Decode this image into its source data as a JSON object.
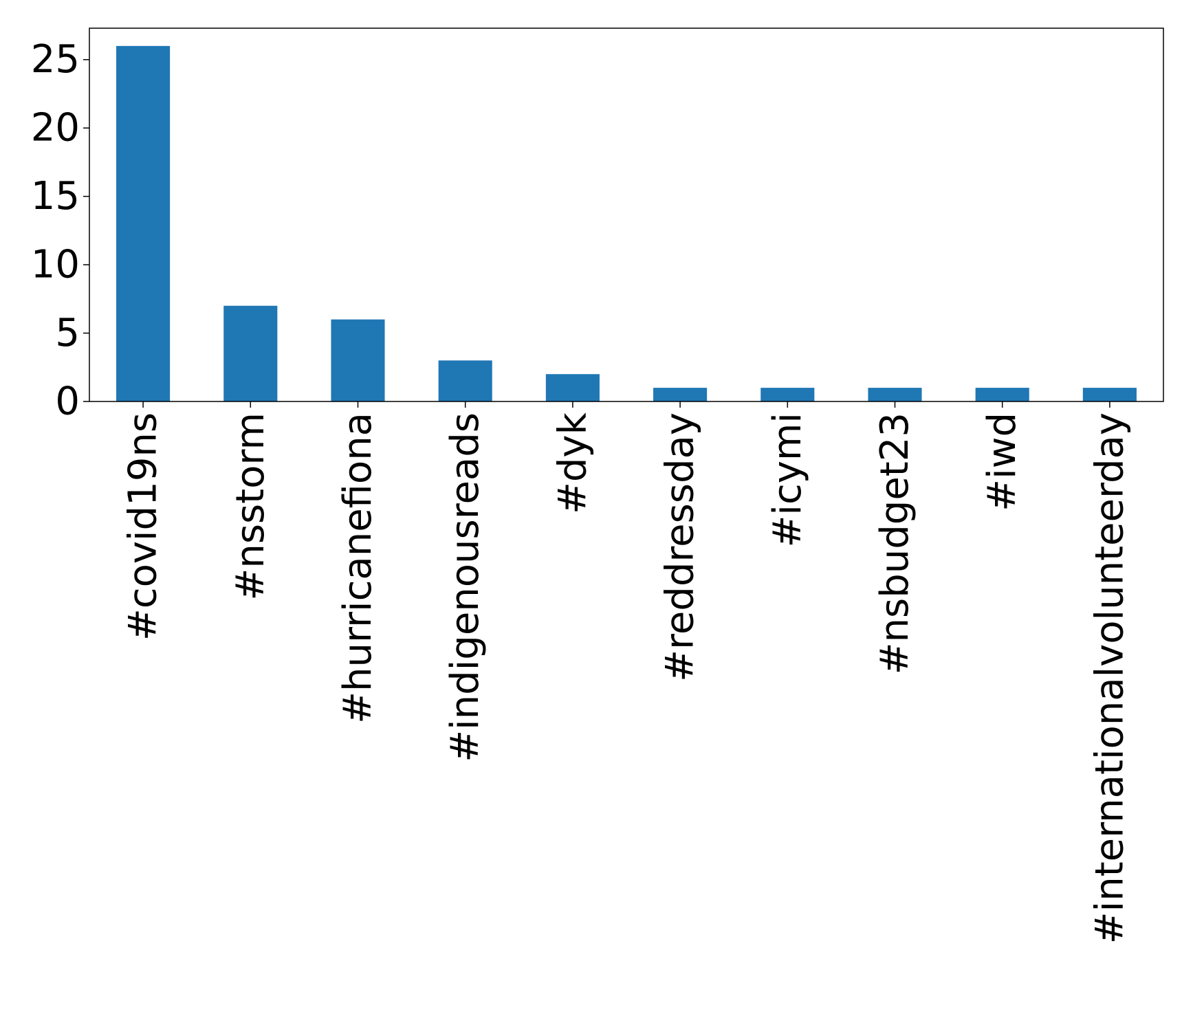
{
  "chart_data": {
    "type": "bar",
    "categories": [
      "#covid19ns",
      "#nsstorm",
      "#hurricanefiona",
      "#indigenousreads",
      "#dyk",
      "#reddressday",
      "#icymi",
      "#nsbudget23",
      "#iwd",
      "#internationalvolunteerday"
    ],
    "values": [
      26,
      7,
      6,
      3,
      2,
      1,
      1,
      1,
      1,
      1
    ],
    "title": "",
    "xlabel": "",
    "ylabel": "",
    "ylim": [
      0,
      27.3
    ],
    "yticks": [
      0,
      5,
      10,
      15,
      20,
      25
    ],
    "grid": false,
    "legend": "none",
    "bar_color": "#1f77b4",
    "axis_color": "#000000"
  }
}
